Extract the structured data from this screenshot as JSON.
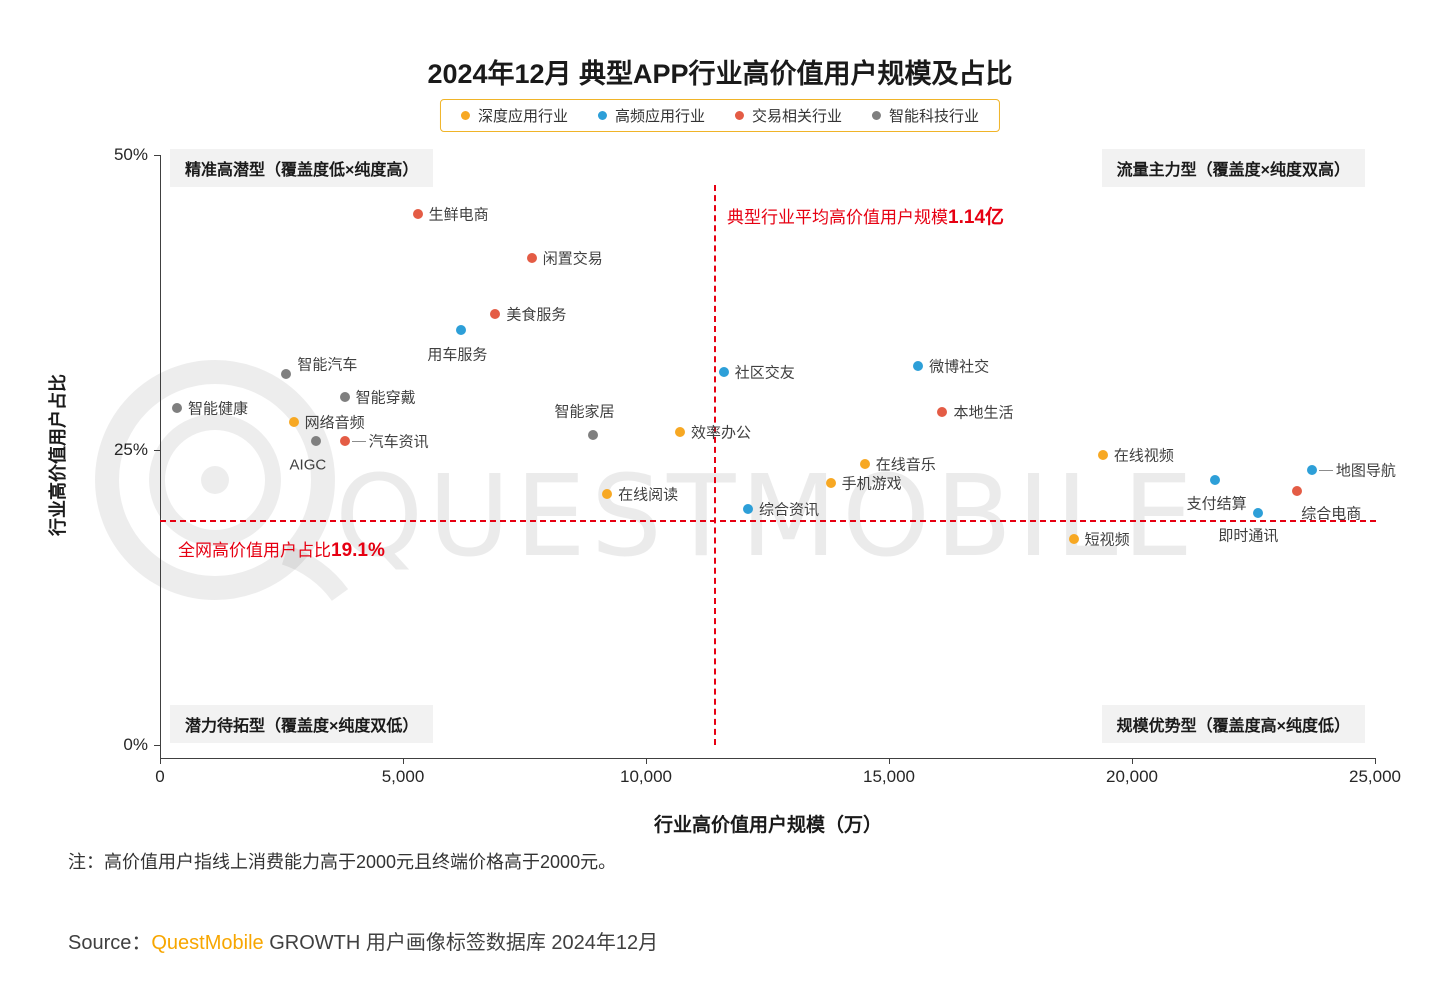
{
  "title": "2024年12月 典型APP行业高价值用户规模及占比",
  "watermark": "QUESTMOBILE",
  "legend": {
    "border_color": "#F0B428",
    "items": [
      {
        "label": "深度应用行业",
        "color": "#F7A823"
      },
      {
        "label": "高频应用行业",
        "color": "#2D9FD8"
      },
      {
        "label": "交易相关行业",
        "color": "#E45C45"
      },
      {
        "label": "智能科技行业",
        "color": "#7F7F7F"
      }
    ]
  },
  "quadrants": {
    "top_left": "精准高潜型（覆盖度低×纯度高）",
    "top_right": "流量主力型（覆盖度×纯度双高）",
    "bottom_left": "潜力待拓型（覆盖度×纯度双低）",
    "bottom_right": "规模优势型（覆盖度高×纯度低）"
  },
  "annotations": {
    "avg_scale_prefix": "典型行业平均高价值用户规模",
    "avg_scale_value": "1.14亿",
    "net_ratio_prefix": "全网高价值用户占比",
    "net_ratio_value": "19.1%",
    "color": "#E60012"
  },
  "axes": {
    "y_title": "行业高价值用户占比",
    "x_title": "行业高价值用户规模（万）"
  },
  "note": "注：高价值用户指线上消费能力高于2000元且终端价格高于2000元。",
  "source": {
    "prefix": "Source：",
    "brand": "QuestMobile",
    "suffix": " GROWTH 用户画像标签数据库 2024年12月"
  },
  "chart_data": {
    "type": "scatter",
    "title": "2024年12月 典型APP行业高价值用户规模及占比",
    "xlabel": "行业高价值用户规模（万）",
    "ylabel": "行业高价值用户占比",
    "xlim": [
      0,
      25000
    ],
    "ylim": [
      0,
      50
    ],
    "grid": false,
    "legend_position": "top",
    "x_ticks": [
      {
        "v": 0,
        "label": "0"
      },
      {
        "v": 5000,
        "label": "5,000"
      },
      {
        "v": 10000,
        "label": "10,000"
      },
      {
        "v": 15000,
        "label": "15,000"
      },
      {
        "v": 20000,
        "label": "20,000"
      },
      {
        "v": 25000,
        "label": "25,000"
      }
    ],
    "y_ticks": [
      {
        "v": 0,
        "label": "0%"
      },
      {
        "v": 25,
        "label": "25%"
      },
      {
        "v": 50,
        "label": "50%"
      }
    ],
    "reference_lines": {
      "x": 11400,
      "y": 19.1
    },
    "series": [
      {
        "name": "深度应用行业",
        "color": "#F7A823",
        "points": [
          {
            "label": "网络音频",
            "x": 2750,
            "y": 27.4,
            "dx": 11,
            "dy": 0
          },
          {
            "label": "效率办公",
            "x": 10700,
            "y": 26.5,
            "dx": 11,
            "dy": 0
          },
          {
            "label": "在线阅读",
            "x": 9200,
            "y": 21.3,
            "dx": 11,
            "dy": 0
          },
          {
            "label": "在线音乐",
            "x": 14500,
            "y": 23.8,
            "dx": 11,
            "dy": 0
          },
          {
            "label": "手机游戏",
            "x": 13800,
            "y": 22.2,
            "dx": 11,
            "dy": 0
          },
          {
            "label": "在线视频",
            "x": 19400,
            "y": 24.6,
            "dx": 11,
            "dy": 0
          },
          {
            "label": "短视频",
            "x": 18800,
            "y": 17.5,
            "dx": 11,
            "dy": 0
          }
        ]
      },
      {
        "name": "高频应用行业",
        "color": "#2D9FD8",
        "points": [
          {
            "label": "用车服务",
            "x": 6200,
            "y": 35.2,
            "dx": -34,
            "dy": 24
          },
          {
            "label": "社区交友",
            "x": 11600,
            "y": 31.6,
            "dx": 11,
            "dy": 0
          },
          {
            "label": "微博社交",
            "x": 15600,
            "y": 32.1,
            "dx": 11,
            "dy": 0
          },
          {
            "label": "综合资讯",
            "x": 12100,
            "y": 20.0,
            "dx": 11,
            "dy": 0
          },
          {
            "label": "支付结算",
            "x": 21700,
            "y": 22.5,
            "dx": -28,
            "dy": 23
          },
          {
            "label": "即时通讯",
            "x": 22600,
            "y": 19.7,
            "dx": -40,
            "dy": 22
          },
          {
            "label": "地图导航",
            "x": 23700,
            "y": 23.3,
            "dx": 24,
            "dy": 0,
            "leader": true
          }
        ]
      },
      {
        "name": "交易相关行业",
        "color": "#E45C45",
        "points": [
          {
            "label": "生鲜电商",
            "x": 5300,
            "y": 45.0,
            "dx": 11,
            "dy": 0
          },
          {
            "label": "闲置交易",
            "x": 7650,
            "y": 41.3,
            "dx": 11,
            "dy": 0
          },
          {
            "label": "美食服务",
            "x": 6900,
            "y": 36.5,
            "dx": 11,
            "dy": 0
          },
          {
            "label": "汽车资讯",
            "x": 3800,
            "y": 25.8,
            "dx": 24,
            "dy": 0,
            "leader": true
          },
          {
            "label": "本地生活",
            "x": 16100,
            "y": 28.2,
            "dx": 11,
            "dy": 0
          },
          {
            "label": "综合电商",
            "x": 23400,
            "y": 21.5,
            "dx": 4,
            "dy": 22
          }
        ]
      },
      {
        "name": "智能科技行业",
        "color": "#7F7F7F",
        "points": [
          {
            "label": "智能健康",
            "x": 350,
            "y": 28.6,
            "dx": 11,
            "dy": 0
          },
          {
            "label": "智能汽车",
            "x": 2600,
            "y": 31.4,
            "dx": 11,
            "dy": -10
          },
          {
            "label": "智能穿戴",
            "x": 3800,
            "y": 29.5,
            "dx": 11,
            "dy": 0
          },
          {
            "label": "AIGC",
            "x": 3200,
            "y": 25.8,
            "dx": -26,
            "dy": 24
          },
          {
            "label": "智能家居",
            "x": 8900,
            "y": 26.3,
            "dx": -38,
            "dy": -24
          }
        ]
      }
    ]
  }
}
